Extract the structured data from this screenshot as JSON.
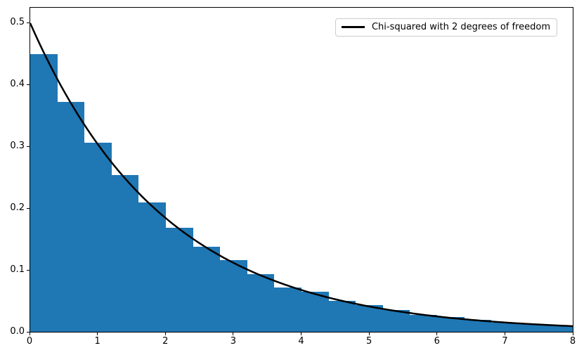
{
  "chart_data": {
    "type": "bar",
    "subtype": "histogram-with-density-line",
    "title": "",
    "xlabel": "",
    "ylabel": "",
    "xlim": [
      0,
      8
    ],
    "ylim": [
      0,
      0.525
    ],
    "grid": false,
    "bar_color": "#1f77b4",
    "bin_start": 0,
    "bin_width": 0.4,
    "values": [
      0.45,
      0.372,
      0.306,
      0.254,
      0.209,
      0.169,
      0.138,
      0.116,
      0.093,
      0.072,
      0.065,
      0.05,
      0.043,
      0.035,
      0.027,
      0.024,
      0.019,
      0.0145,
      0.013,
      0.0105
    ],
    "xticks": [
      0,
      1,
      2,
      3,
      4,
      5,
      6,
      7,
      8
    ],
    "xtick_labels": [
      "0",
      "1",
      "2",
      "3",
      "4",
      "5",
      "6",
      "7",
      "8"
    ],
    "yticks": [
      0.0,
      0.1,
      0.2,
      0.3,
      0.4,
      0.5
    ],
    "ytick_labels": [
      "0.0",
      "0.1",
      "0.2",
      "0.3",
      "0.4",
      "0.5"
    ],
    "line": {
      "label": "Chi-squared with 2 degrees of freedom",
      "color": "#000000",
      "width": 2.5,
      "formula": "y = 0.5 * exp(-x/2)",
      "scale": 0.5,
      "rate": 0.5
    },
    "legend": {
      "position": "upper right",
      "label": "Chi-squared with 2 degrees of freedom"
    }
  }
}
